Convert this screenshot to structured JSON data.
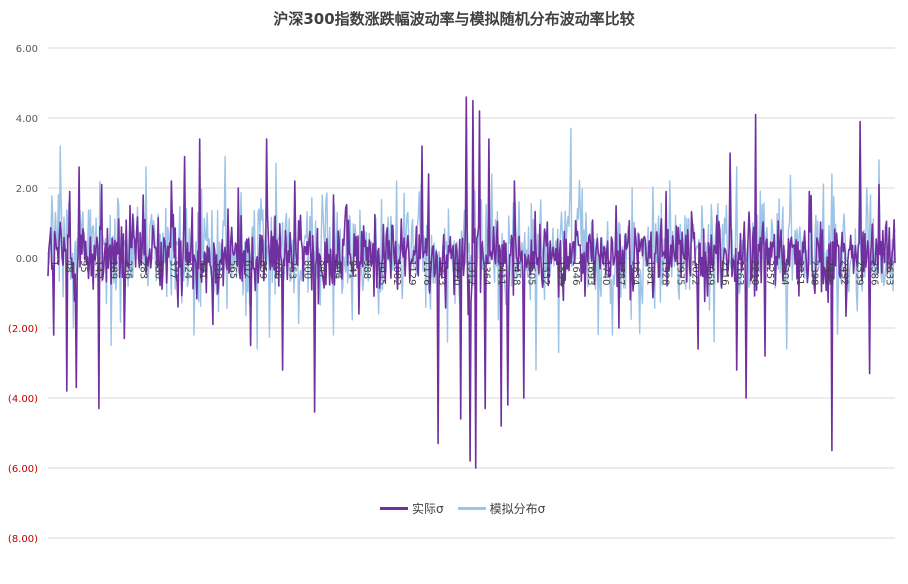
{
  "chart_data": {
    "type": "line",
    "title": "沪深300指数涨跌幅波动率与模拟随机分布波动率比较",
    "xlabel": "",
    "ylabel": "",
    "ylim": [
      -8,
      6
    ],
    "y_ticks": [
      "6.00",
      "4.00",
      "2.00",
      "0.00",
      "(2.00)",
      "(4.00)",
      "(6.00)",
      "(8.00)"
    ],
    "y_tick_values": [
      6,
      4,
      2,
      0,
      -2,
      -4,
      -6,
      -8
    ],
    "negative_tick_color": "#c00000",
    "positive_tick_color": "#595959",
    "x_ticks": [
      "1",
      "48",
      "95",
      "142",
      "189",
      "236",
      "283",
      "330",
      "377",
      "424",
      "471",
      "518",
      "565",
      "612",
      "659",
      "706",
      "753",
      "800",
      "847",
      "894",
      "941",
      "988",
      "1035",
      "1082",
      "1129",
      "1176",
      "1223",
      "1270",
      "1317",
      "1364",
      "1411",
      "1458",
      "1505",
      "1552",
      "1599",
      "1646",
      "1693",
      "1740",
      "1787",
      "1834",
      "1881",
      "1928",
      "1975",
      "2022",
      "2069",
      "2116",
      "2163",
      "2210",
      "2257",
      "2304",
      "2351",
      "2398",
      "2445",
      "2492",
      "2539",
      "2586",
      "2633"
    ],
    "x_range": [
      1,
      2670
    ],
    "grid": true,
    "legend_position": "bottom",
    "series": [
      {
        "name": "实际σ",
        "color": "#7030a0",
        "typical_range": [
          -1.3,
          1.3
        ],
        "peaks": [
          [
            20,
            -2.2
          ],
          [
            60,
            -3.8
          ],
          [
            70,
            1.9
          ],
          [
            90,
            -3.7
          ],
          [
            100,
            2.6
          ],
          [
            160,
            -4.3
          ],
          [
            170,
            2.1
          ],
          [
            240,
            -2.3
          ],
          [
            300,
            1.8
          ],
          [
            390,
            2.2
          ],
          [
            430,
            2.9
          ],
          [
            480,
            3.4
          ],
          [
            520,
            -1.9
          ],
          [
            600,
            2.0
          ],
          [
            640,
            -2.5
          ],
          [
            690,
            3.4
          ],
          [
            740,
            -3.2
          ],
          [
            780,
            2.2
          ],
          [
            840,
            -4.4
          ],
          [
            900,
            1.8
          ],
          [
            980,
            -1.6
          ],
          [
            1180,
            3.2
          ],
          [
            1200,
            2.4
          ],
          [
            1230,
            -5.3
          ],
          [
            1300,
            -4.6
          ],
          [
            1320,
            4.6
          ],
          [
            1330,
            -5.8
          ],
          [
            1340,
            4.5
          ],
          [
            1350,
            -6.0
          ],
          [
            1360,
            4.2
          ],
          [
            1380,
            -4.3
          ],
          [
            1390,
            3.4
          ],
          [
            1430,
            -4.8
          ],
          [
            1450,
            -4.2
          ],
          [
            1470,
            2.2
          ],
          [
            1500,
            -4.0
          ],
          [
            1800,
            -2.0
          ],
          [
            1950,
            1.9
          ],
          [
            2050,
            -2.6
          ],
          [
            2150,
            3.0
          ],
          [
            2170,
            -3.2
          ],
          [
            2200,
            -4.0
          ],
          [
            2230,
            4.1
          ],
          [
            2260,
            -2.8
          ],
          [
            2400,
            1.9
          ],
          [
            2470,
            -5.5
          ],
          [
            2560,
            3.9
          ],
          [
            2590,
            -3.3
          ],
          [
            2620,
            2.1
          ]
        ]
      },
      {
        "name": "模拟分布σ",
        "color": "#9dc3e6",
        "typical_range": [
          -1.8,
          1.8
        ],
        "peaks": [
          [
            40,
            3.2
          ],
          [
            80,
            -2.0
          ],
          [
            200,
            -2.5
          ],
          [
            310,
            2.6
          ],
          [
            460,
            -2.2
          ],
          [
            560,
            2.9
          ],
          [
            660,
            -2.6
          ],
          [
            720,
            2.7
          ],
          [
            900,
            -2.2
          ],
          [
            1100,
            2.2
          ],
          [
            1260,
            -2.4
          ],
          [
            1400,
            2.4
          ],
          [
            1540,
            -3.2
          ],
          [
            1610,
            -2.7
          ],
          [
            1650,
            3.7
          ],
          [
            1780,
            -2.2
          ],
          [
            1960,
            2.2
          ],
          [
            2100,
            -2.4
          ],
          [
            2170,
            2.6
          ],
          [
            2330,
            -2.6
          ],
          [
            2470,
            2.4
          ],
          [
            2620,
            2.8
          ]
        ]
      }
    ]
  }
}
